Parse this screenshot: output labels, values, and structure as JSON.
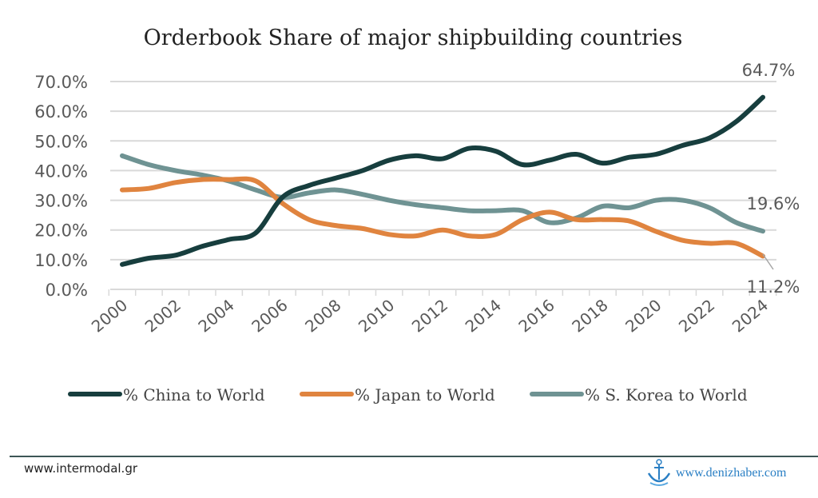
{
  "chart_data": {
    "type": "line",
    "title": "Orderbook Share of major shipbuilding countries",
    "x": [
      2000,
      2001,
      2002,
      2003,
      2004,
      2005,
      2006,
      2007,
      2008,
      2009,
      2010,
      2011,
      2012,
      2013,
      2014,
      2015,
      2016,
      2017,
      2018,
      2019,
      2020,
      2021,
      2022,
      2023,
      2024
    ],
    "x_tick_labels": [
      "2000",
      "2002",
      "2004",
      "2006",
      "2008",
      "2010",
      "2012",
      "2014",
      "2016",
      "2018",
      "2020",
      "2022",
      "2024"
    ],
    "y_tick_labels": [
      "0.0%",
      "10.0%",
      "20.0%",
      "30.0%",
      "40.0%",
      "50.0%",
      "60.0%",
      "70.0%"
    ],
    "ylim": [
      0,
      70
    ],
    "grid": true,
    "legend_placement": "bottom",
    "series": [
      {
        "name": "% China to World",
        "color": "#173e3e",
        "values": [
          8.4,
          10.5,
          11.5,
          14.5,
          16.8,
          19,
          31,
          35,
          37.5,
          40,
          43.5,
          45,
          44,
          47.5,
          46.5,
          42,
          43.5,
          45.5,
          42.5,
          44.5,
          45.5,
          48.5,
          51,
          56.5,
          64.7
        ],
        "end_label": "64.7%"
      },
      {
        "name": "% Japan to World",
        "color": "#e0843f",
        "values": [
          33.5,
          34,
          36,
          37,
          37,
          36.5,
          29,
          23.5,
          21.5,
          20.5,
          18.5,
          18,
          20,
          18,
          18.5,
          23.5,
          26,
          23.5,
          23.5,
          23,
          19.5,
          16.5,
          15.5,
          15.5,
          11.2
        ],
        "end_label": "11.2%"
      },
      {
        "name": "% S. Korea to World",
        "color": "#6f9393",
        "values": [
          45,
          42,
          40,
          38.5,
          36.5,
          33.5,
          31,
          32.5,
          33.5,
          32,
          30,
          28.5,
          27.5,
          26.5,
          26.5,
          26.5,
          22.5,
          24,
          28,
          27.5,
          30,
          30,
          27.5,
          22.5,
          19.6
        ],
        "end_label": "19.6%"
      }
    ]
  },
  "footer": {
    "source_left": "www.intermodal.gr",
    "watermark_right": "www.denizhaber.com",
    "watermark_icon": "anchor-icon"
  }
}
